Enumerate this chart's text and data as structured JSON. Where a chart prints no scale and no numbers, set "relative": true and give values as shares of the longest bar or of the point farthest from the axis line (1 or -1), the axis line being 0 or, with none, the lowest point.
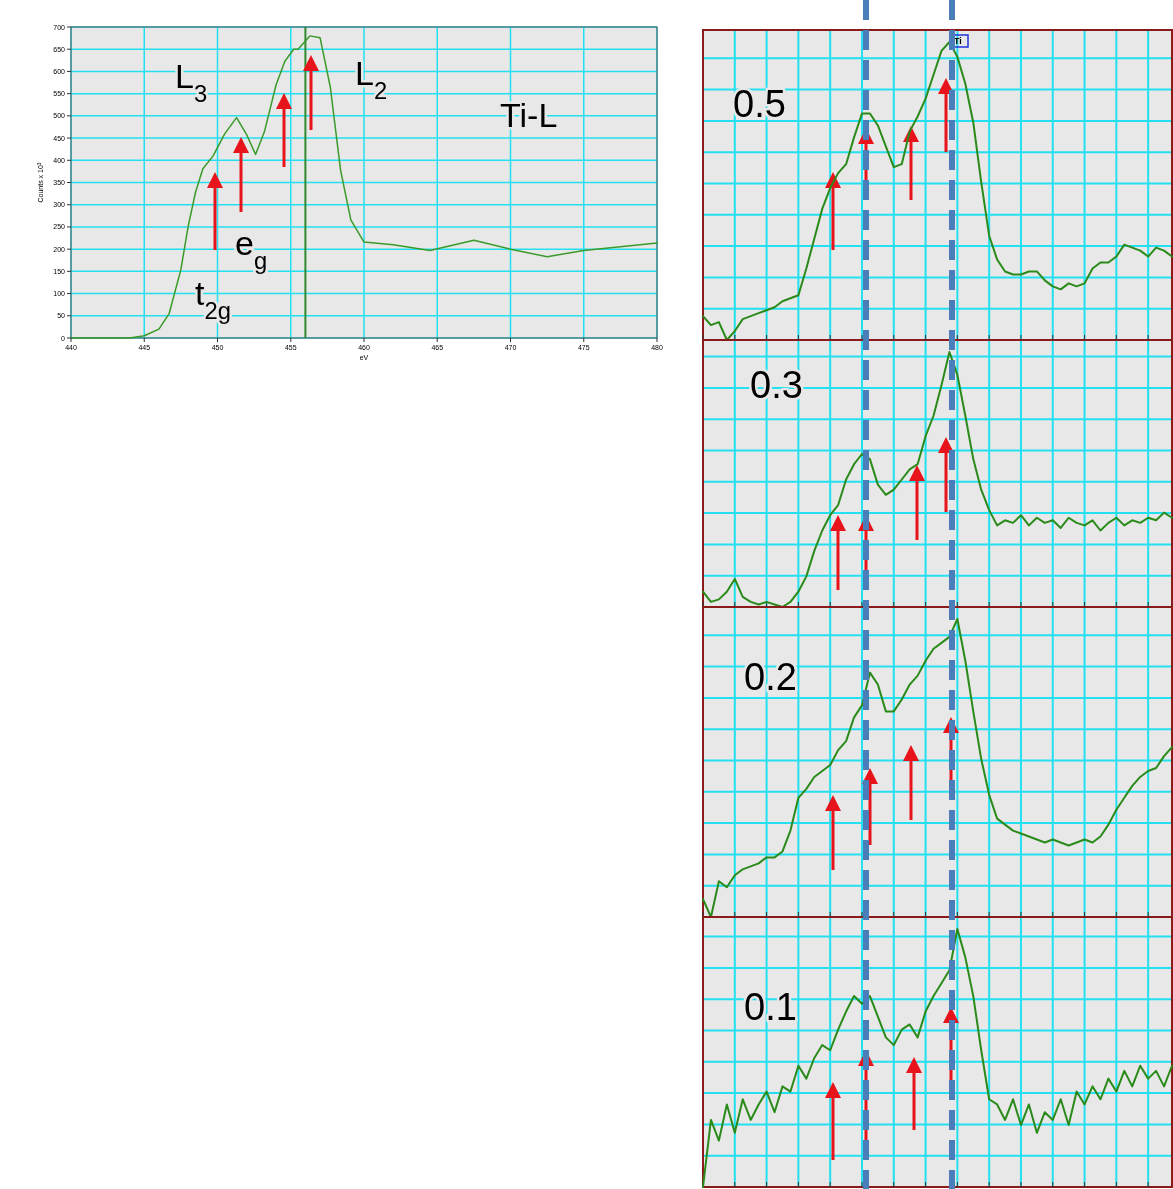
{
  "chart_data": [
    {
      "type": "line",
      "xlabel": "eV",
      "ylabel": "Counts x 10$^{3}$",
      "color": "#3a9a2a",
      "grid": true,
      "x": [
        440,
        441,
        442,
        443,
        444,
        445,
        446,
        446.7,
        447.5,
        448,
        448.5,
        449,
        449.7,
        450.5,
        451.3,
        452,
        452.6,
        453.2,
        454,
        454.6,
        455.2,
        455.5,
        456.3,
        457,
        457.7,
        458.4,
        459.1,
        460,
        462,
        464.5,
        467.5,
        470,
        472.5,
        475,
        478,
        480
      ],
      "values": [
        0,
        0,
        0,
        0,
        0,
        5,
        20,
        55,
        154,
        252,
        328,
        381,
        410,
        460,
        496,
        457,
        413,
        464,
        570,
        623,
        650,
        650,
        680,
        676,
        565,
        378,
        266,
        216,
        210,
        197,
        220,
        200,
        183,
        197,
        207,
        214
      ],
      "xlim": [
        440,
        480
      ],
      "ylim": [
        0,
        700
      ],
      "xticks": [
        440,
        445,
        450,
        455,
        460,
        465,
        470,
        475,
        480
      ],
      "yticks": [
        0,
        50,
        100,
        150,
        200,
        250,
        300,
        350,
        400,
        450,
        500,
        550,
        600,
        650,
        700
      ],
      "ref_lines": [
        {
          "axis": "x",
          "value": 456,
          "color": "#2e8b2e"
        }
      ],
      "annotations": [
        "L$_{3}$",
        "L$_{2}$",
        "Ti-L",
        "e$_{g}$",
        "t$_{2g}$"
      ]
    },
    {
      "type": "line",
      "relative": true,
      "grid": true,
      "color": "#2a8a1a",
      "annotations": [
        "0.5",
        "Ti"
      ],
      "categories": [
        null,
        null,
        null,
        null,
        null,
        null,
        null,
        null,
        null,
        null,
        null,
        null,
        null,
        null,
        null,
        null,
        null,
        null,
        null,
        null,
        null,
        null,
        null,
        null,
        null,
        null,
        null,
        null,
        null,
        null,
        null,
        null,
        null,
        null,
        null,
        null,
        null,
        null,
        null,
        null,
        null,
        null,
        null,
        null,
        null,
        null,
        null,
        null,
        null,
        null,
        null,
        null,
        null,
        null,
        null,
        null,
        null,
        null,
        null,
        null
      ],
      "values": [
        0.08,
        0.05,
        0.06,
        0,
        0.03,
        0.07,
        0.08,
        0.09,
        0.1,
        0.11,
        0.13,
        0.14,
        0.15,
        0.24,
        0.34,
        0.44,
        0.51,
        0.56,
        0.59,
        0.68,
        0.76,
        0.76,
        0.72,
        0.65,
        0.58,
        0.59,
        0.7,
        0.75,
        0.81,
        0.89,
        0.97,
        1,
        0.95,
        0.86,
        0.73,
        0.53,
        0.35,
        0.27,
        0.23,
        0.22,
        0.22,
        0.23,
        0.23,
        0.2,
        0.18,
        0.17,
        0.19,
        0.18,
        0.19,
        0.24,
        0.26,
        0.26,
        0.28,
        0.32,
        0.31,
        0.3,
        0.28,
        0.31,
        0.3,
        0.28
      ]
    },
    {
      "type": "line",
      "relative": true,
      "grid": true,
      "color": "#2a8a1a",
      "annotations": [
        "0.3"
      ],
      "categories": [
        null,
        null,
        null,
        null,
        null,
        null,
        null,
        null,
        null,
        null,
        null,
        null,
        null,
        null,
        null,
        null,
        null,
        null,
        null,
        null,
        null,
        null,
        null,
        null,
        null,
        null,
        null,
        null,
        null,
        null,
        null,
        null,
        null,
        null,
        null,
        null,
        null,
        null,
        null,
        null,
        null,
        null,
        null,
        null,
        null,
        null,
        null,
        null,
        null,
        null,
        null,
        null,
        null,
        null,
        null,
        null,
        null,
        null,
        null,
        null
      ],
      "values": [
        0.06,
        0.02,
        0.03,
        0.06,
        0.11,
        0.04,
        0.02,
        0.01,
        0.02,
        0.01,
        0,
        0.02,
        0.06,
        0.12,
        0.22,
        0.3,
        0.36,
        0.4,
        0.5,
        0.56,
        0.6,
        0.58,
        0.48,
        0.44,
        0.46,
        0.5,
        0.54,
        0.56,
        0.67,
        0.75,
        0.87,
        1,
        0.91,
        0.75,
        0.58,
        0.46,
        0.38,
        0.32,
        0.34,
        0.33,
        0.36,
        0.32,
        0.35,
        0.33,
        0.34,
        0.31,
        0.35,
        0.33,
        0.32,
        0.34,
        0.3,
        0.33,
        0.35,
        0.32,
        0.34,
        0.33,
        0.35,
        0.34,
        0.37,
        0.35
      ]
    },
    {
      "type": "line",
      "relative": true,
      "grid": true,
      "color": "#2a8a1a",
      "annotations": [
        "0.2"
      ],
      "categories": [
        null,
        null,
        null,
        null,
        null,
        null,
        null,
        null,
        null,
        null,
        null,
        null,
        null,
        null,
        null,
        null,
        null,
        null,
        null,
        null,
        null,
        null,
        null,
        null,
        null,
        null,
        null,
        null,
        null,
        null,
        null,
        null,
        null,
        null,
        null,
        null,
        null,
        null,
        null,
        null,
        null,
        null,
        null,
        null,
        null,
        null,
        null,
        null,
        null,
        null,
        null,
        null,
        null,
        null,
        null,
        null,
        null,
        null,
        null,
        null
      ],
      "values": [
        0.06,
        0,
        0.12,
        0.1,
        0.14,
        0.16,
        0.17,
        0.18,
        0.2,
        0.2,
        0.22,
        0.29,
        0.4,
        0.43,
        0.47,
        0.49,
        0.51,
        0.56,
        0.59,
        0.67,
        0.71,
        0.82,
        0.78,
        0.69,
        0.69,
        0.73,
        0.78,
        0.81,
        0.86,
        0.9,
        0.92,
        0.94,
        1,
        0.86,
        0.69,
        0.53,
        0.41,
        0.33,
        0.31,
        0.29,
        0.28,
        0.27,
        0.26,
        0.25,
        0.26,
        0.25,
        0.24,
        0.25,
        0.26,
        0.25,
        0.27,
        0.31,
        0.36,
        0.4,
        0.44,
        0.47,
        0.49,
        0.5,
        0.54,
        0.57
      ]
    },
    {
      "type": "line",
      "relative": true,
      "grid": true,
      "color": "#2a8a1a",
      "annotations": [
        "0.1"
      ],
      "categories": [
        null,
        null,
        null,
        null,
        null,
        null,
        null,
        null,
        null,
        null,
        null,
        null,
        null,
        null,
        null,
        null,
        null,
        null,
        null,
        null,
        null,
        null,
        null,
        null,
        null,
        null,
        null,
        null,
        null,
        null,
        null,
        null,
        null,
        null,
        null,
        null,
        null,
        null,
        null,
        null,
        null,
        null,
        null,
        null,
        null,
        null,
        null,
        null,
        null,
        null,
        null,
        null,
        null,
        null,
        null,
        null,
        null,
        null,
        null,
        null
      ],
      "values": [
        0,
        0.26,
        0.18,
        0.32,
        0.21,
        0.34,
        0.26,
        0.32,
        0.37,
        0.29,
        0.39,
        0.37,
        0.47,
        0.42,
        0.5,
        0.55,
        0.53,
        0.61,
        0.68,
        0.74,
        0.71,
        0.74,
        0.66,
        0.58,
        0.55,
        0.61,
        0.63,
        0.58,
        0.68,
        0.74,
        0.79,
        0.84,
        1,
        0.89,
        0.74,
        0.53,
        0.34,
        0.32,
        0.26,
        0.34,
        0.24,
        0.32,
        0.21,
        0.29,
        0.26,
        0.34,
        0.24,
        0.37,
        0.32,
        0.39,
        0.34,
        0.42,
        0.37,
        0.45,
        0.39,
        0.47,
        0.42,
        0.45,
        0.39,
        0.47
      ]
    }
  ]
}
